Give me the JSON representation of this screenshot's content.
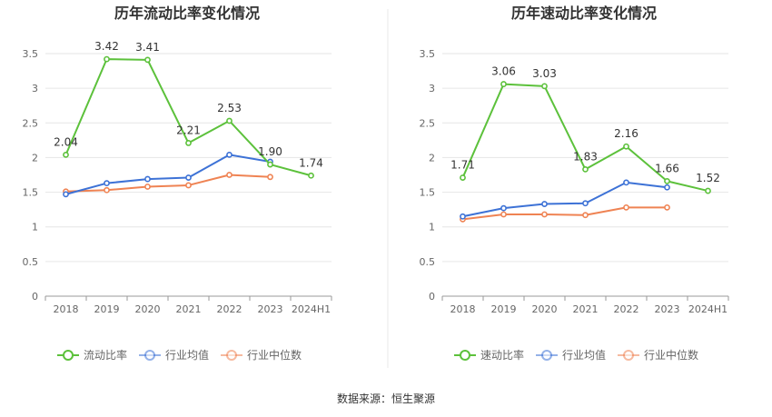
{
  "source": "数据来源：恒生聚源",
  "chart_data": [
    {
      "type": "line",
      "title": "历年流动比率变化情况",
      "categories": [
        "2018",
        "2019",
        "2020",
        "2021",
        "2022",
        "2023",
        "2024H1"
      ],
      "ylim": [
        0,
        3.5
      ],
      "yticks": [
        "0",
        "0.5",
        "1",
        "1.5",
        "2",
        "2.5",
        "3",
        "3.5"
      ],
      "grid": true,
      "legend_position": "bottom",
      "series": [
        {
          "name": "流动比率",
          "color": "#5cc13b",
          "values": [
            2.04,
            3.42,
            3.41,
            2.21,
            2.53,
            1.9,
            1.74
          ],
          "labels": [
            "2.04",
            "3.42",
            "3.41",
            "2.21",
            "2.53",
            "1.90",
            "1.74"
          ]
        },
        {
          "name": "行业均值",
          "color": "#3d72d6",
          "values": [
            1.47,
            1.63,
            1.69,
            1.71,
            2.04,
            1.94,
            null
          ]
        },
        {
          "name": "行业中位数",
          "color": "#ef8353",
          "values": [
            1.51,
            1.53,
            1.58,
            1.6,
            1.75,
            1.72,
            null
          ]
        }
      ]
    },
    {
      "type": "line",
      "title": "历年速动比率变化情况",
      "categories": [
        "2018",
        "2019",
        "2020",
        "2021",
        "2022",
        "2023",
        "2024H1"
      ],
      "ylim": [
        0,
        3.5
      ],
      "yticks": [
        "0",
        "0.5",
        "1",
        "1.5",
        "2",
        "2.5",
        "3",
        "3.5"
      ],
      "grid": true,
      "legend_position": "bottom",
      "series": [
        {
          "name": "速动比率",
          "color": "#5cc13b",
          "values": [
            1.71,
            3.06,
            3.03,
            1.83,
            2.16,
            1.66,
            1.52
          ],
          "labels": [
            "1.71",
            "3.06",
            "3.03",
            "1.83",
            "2.16",
            "1.66",
            "1.52"
          ]
        },
        {
          "name": "行业均值",
          "color": "#3d72d6",
          "values": [
            1.15,
            1.27,
            1.33,
            1.34,
            1.64,
            1.57,
            null
          ]
        },
        {
          "name": "行业中位数",
          "color": "#ef8353",
          "values": [
            1.11,
            1.18,
            1.18,
            1.17,
            1.28,
            1.28,
            null
          ]
        }
      ]
    }
  ]
}
